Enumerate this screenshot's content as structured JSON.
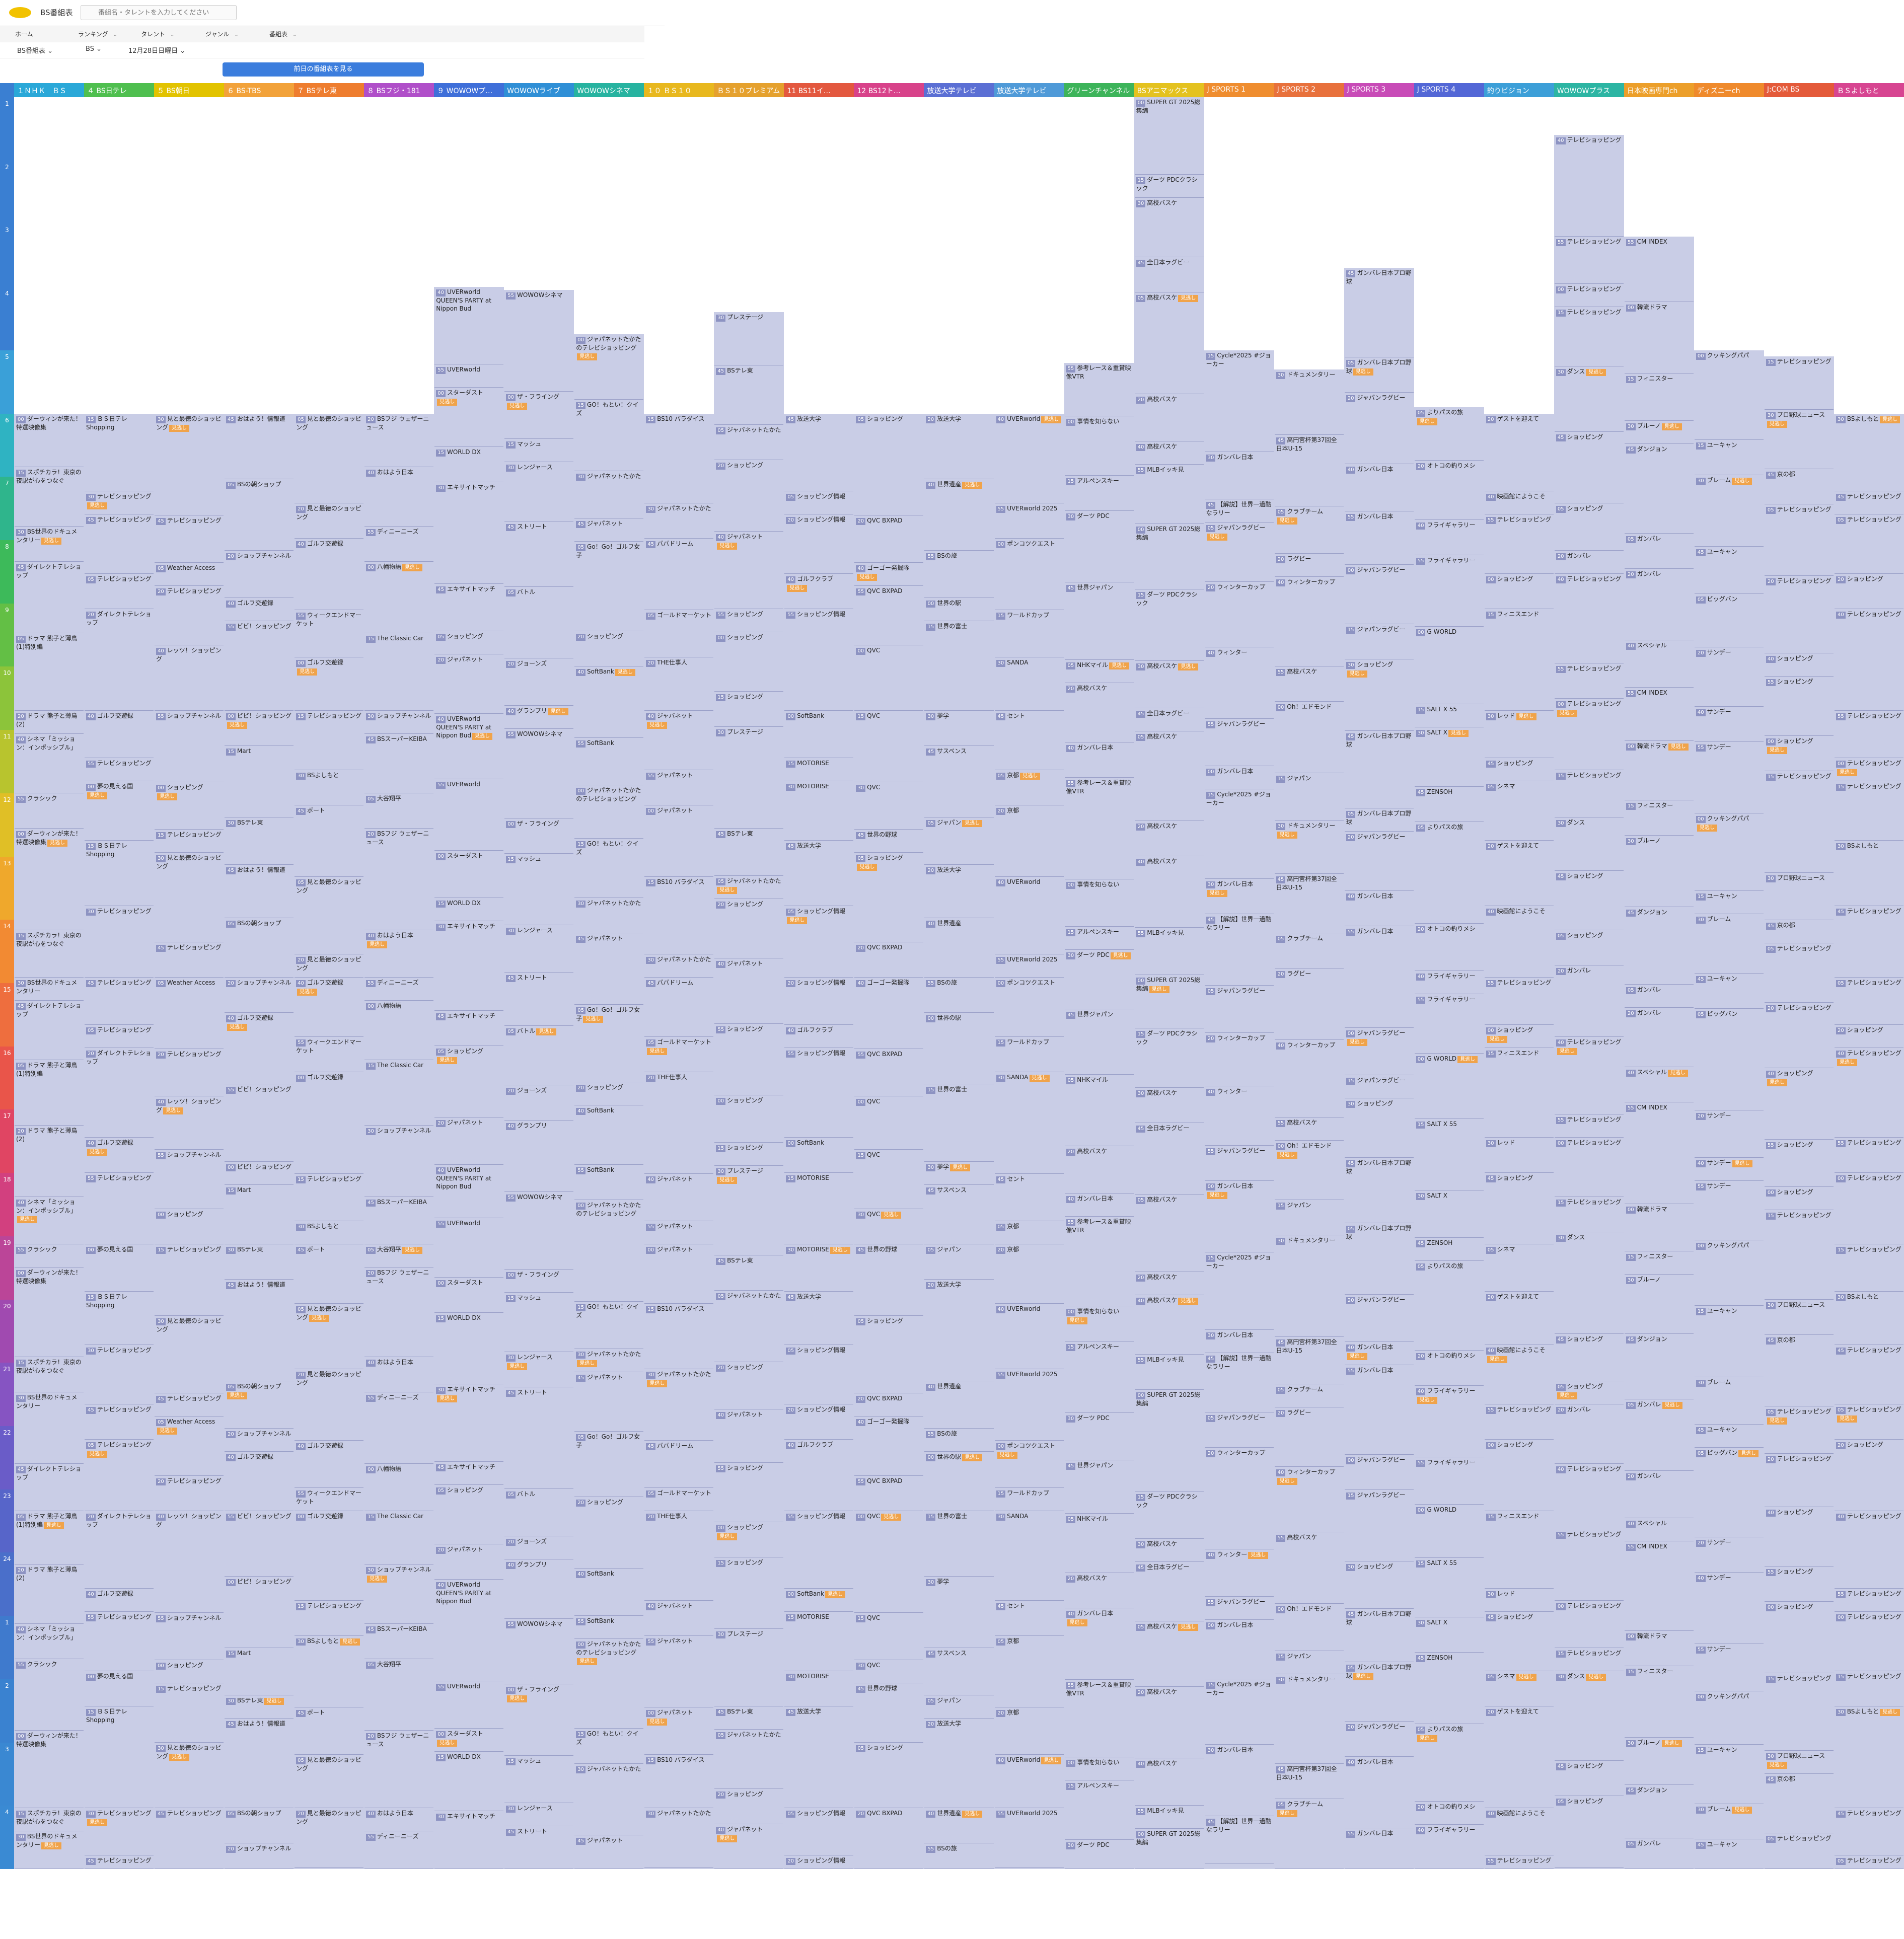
{
  "app": {
    "title": "BS番組表",
    "search_placeholder": "番組名・タレントを入力してください"
  },
  "nav": {
    "items": [
      "ホーム",
      "ランキング",
      "タレント",
      "ジャンル",
      "番組表"
    ]
  },
  "filters": {
    "guide": "BS番組表",
    "band": "BS",
    "date": "12月28日日曜日"
  },
  "prev_button": "前日の番組表を見る",
  "channels": [
    {
      "name": "１ＮＨＫ　ＢＳ",
      "color": "#2aa8d8"
    },
    {
      "name": "４ BS日テレ",
      "color": "#4fbf4f"
    },
    {
      "name": "５ BS朝日",
      "color": "#e2c300"
    },
    {
      "name": "６ BS-TBS",
      "color": "#f2a23a"
    },
    {
      "name": "７ BSテレ東",
      "color": "#ee7d2f"
    },
    {
      "name": "８ BSフジ・181",
      "color": "#b04fc9"
    },
    {
      "name": "９ WOWOWプ…",
      "color": "#3f6fd9"
    },
    {
      "name": "WOWOWライブ",
      "color": "#2f8fd6"
    },
    {
      "name": "WOWOWシネマ",
      "color": "#27b3a0"
    },
    {
      "name": "１０ ＢＳ１０",
      "color": "#e8b81e"
    },
    {
      "name": "ＢＳ１０プレミアム",
      "color": "#e5a12e"
    },
    {
      "name": "11 BS11イ…",
      "color": "#e3583f"
    },
    {
      "name": "12 BS12ト…",
      "color": "#d8428a"
    },
    {
      "name": "放送大学テレビ",
      "color": "#5b6fd4"
    },
    {
      "name": "放送大学テレビ",
      "color": "#4f9ad8"
    },
    {
      "name": "グリーンチャンネル",
      "color": "#3db45a"
    },
    {
      "name": "BSアニマックス",
      "color": "#e4c21f"
    },
    {
      "name": "J SPORTS 1",
      "color": "#ef8d2f"
    },
    {
      "name": "J SPORTS 2",
      "color": "#e8713c"
    },
    {
      "name": "J SPORTS 3",
      "color": "#c84bb7"
    },
    {
      "name": "J SPORTS 4",
      "color": "#5367d6"
    },
    {
      "name": "釣りビジョン",
      "color": "#3c9fd8"
    },
    {
      "name": "WOWOWプラス",
      "color": "#2cb5a3"
    },
    {
      "name": "日本映画専門ch",
      "color": "#ec9f2a"
    },
    {
      "name": "ディズニーch",
      "color": "#ef8a2c"
    },
    {
      "name": "J:COM BS",
      "color": "#e45a3a"
    },
    {
      "name": "ＢＳよしもと",
      "color": "#d74591"
    }
  ],
  "hours": [
    "1",
    "2",
    "3",
    "4",
    "5",
    "6",
    "7",
    "8",
    "9",
    "10",
    "11",
    "12",
    "13",
    "14",
    "15",
    "16",
    "17",
    "18",
    "19",
    "20",
    "21",
    "22",
    "23",
    "24",
    "1",
    "2",
    "3",
    "4"
  ],
  "hour_colors": [
    "#3a7fd2",
    "#3a7fd2",
    "#3a7fd2",
    "#3a7fd2",
    "#3aa0d8",
    "#2fb3c2",
    "#2fb58c",
    "#3dba5a",
    "#63bf45",
    "#8cc43a",
    "#b8c42e",
    "#e0bf26",
    "#efa82c",
    "#f28a33",
    "#ee6e3e",
    "#e9554a",
    "#e04563",
    "#d2407f",
    "#bb4598",
    "#a04ab0",
    "#8654c2",
    "#6a5cc8",
    "#5765c9",
    "#4a6fca",
    "#3f7acd",
    "#3a82d0",
    "#3a88d2",
    "#3a8ad3"
  ],
  "programs": [
    [
      "ダーウィンが来た！特選映像集",
      "ＢＳ日テレ Shopping",
      "見と最徳のショッピング",
      "おはよう！情報道",
      "見と最徳のショッピング",
      "BSフジ ウェザーニュース",
      "UVERworld QUEEN'S PARTY at Nippon Bud",
      "WOWOWシネマ",
      "ジャパネットたかたのテレビショッピング",
      "BS10 パラダイス",
      "プレステージ",
      "放送大学",
      "ショッピング",
      "放送大学",
      "UVERworld",
      "参考レース＆重賞映像VTR",
      "SUPER GT 2025総集編",
      "Cycle*2025 #ジョーカー",
      "ドキュメンタリー",
      "ガンバレ日本プロ野球",
      "よりパスの旅",
      "ゲストを迎えて",
      "テレビショッピング",
      "CM INDEX",
      "クッキングパパ",
      "テレビショッピング",
      "BSよしもと"
    ],
    [
      "スポチカラ！東京の夜駅が心をつなぐ",
      "テレビショッピング",
      "テレビショッピング",
      "BSの朝ショップ",
      "見と最徳のショッピング",
      "おはよう日本",
      "UVERworld",
      "ザ・フライング",
      "GO！もとい！クイズ",
      "ジャパネットたかた",
      "BSテレ東",
      "ショッピング情報",
      "QVC BXPAD",
      "世界遺産",
      "UVERworld 2025",
      "事情を知らない",
      "ダーツ PDCクラシック",
      "ガンバレ日本",
      "高円宮杯第37回全日本U-15",
      "ガンバレ日本プロ野球",
      "オトコの釣りメシ",
      "映画館にようこそ",
      "テレビショッピング",
      "韓流ドラマ",
      "ユーキャン",
      "プロ野球ニュース",
      "テレビショッピング"
    ],
    [
      "BS世界のドキュメンタリー",
      "テレビショッピング",
      "Weather Access",
      "ショップチャンネル",
      "ゴルフ交遊録",
      "ディニーニーズ",
      "スターダスト",
      "マッシュ",
      "ジャパネットたかた",
      "パパドリーム",
      "ジャパネットたかた",
      "ショッピング情報",
      "ゴーゴー発掘隊",
      "BSの旅",
      "ポンコツクエスト",
      "アルペンスキー",
      "高校バスケ",
      "【解説】世界一過酷なラリー",
      "クラブチーム",
      "ジャパンラグビー",
      "フライギャラリー",
      "テレビショッピング",
      "テレビショッピング",
      "フィニスター",
      "ブレーム",
      "京の都",
      "テレビショッピング"
    ],
    [
      "ダイレクトテレショップ",
      "テレビショッピング",
      "テレビショッピング",
      "ゴルフ交遊録",
      "ウィークエンドマーケット",
      "八幡物語",
      "WORLD DX",
      "レンジャース",
      "ジャパネット",
      "ゴールドマーケット",
      "ショッピング",
      "ゴルフクラブ",
      "QVC BXPAD",
      "世界の駅",
      "ワールドカップ",
      "ダーツ PDC",
      "全日本ラグビー",
      "ジャパンラグビー",
      "ラグビー",
      "ガンバレ日本",
      "フライギャラリー",
      "ショッピング",
      "テレビショッピング",
      "ブルーノ",
      "ユーキャン",
      "テレビショッピング",
      "ショッピング"
    ],
    [
      "ドラマ 熊子と薄鳥(1)特別編",
      "ダイレクトテレショップ",
      "レッツ！ショッピング",
      "ビビ！ショッピング",
      "ゴルフ交遊録",
      "The Classic Car",
      "エキサイトマッチ",
      "ストリート",
      "Go！Go！ゴルフ女子",
      "THE仕事人",
      "ジャパネット",
      "ショッピング情報",
      "QVC",
      "世界の富士",
      "SANDA",
      "世界ジャパン",
      "高校バスケ",
      "ウィンターカップ",
      "ウィンターカップ",
      "ガンバレ日本",
      "G WORLD",
      "フィニスエンド",
      "ダンス",
      "ダンジョン",
      "ビッグバン",
      "テレビショッピング",
      "テレビショッピング"
    ],
    [
      "ドラマ 熊子と薄鳥(2)",
      "ゴルフ交遊録",
      "ショップチャンネル",
      "ビビ！ショッピング",
      "テレビショッピング",
      "ショップチャンネル",
      "エキサイトマッチ",
      "バトル",
      "ショッピング",
      "ジャパネット",
      "ショッピング",
      "SoftBank",
      "QVC",
      "夢学",
      "セント",
      "NHKマイル",
      "高校バスケ",
      "ウィンター",
      "高校バスケ",
      "ジャパンラグビー",
      "SALT X 55",
      "レッド",
      "ショッピング",
      "ガンバレ",
      "サンデー",
      "ショッピング",
      "テレビショッピング"
    ],
    [
      "シネマ「ミッション：インポッシブル」",
      "テレビショッピング",
      "ショッピング",
      "Mart",
      "BSよしもと",
      "BSスーパーKEIBA",
      "ショッピング",
      "ジョーンズ",
      "SoftBank",
      "ジャパネット",
      "ショッピング",
      "MOTORISE",
      "QVC",
      "サスペンス",
      "京都",
      "高校バスケ",
      "高校バスケ",
      "ジャパンラグビー",
      "Oh！エドモンド",
      "ジャパンラグビー",
      "SALT X",
      "ショッピング",
      "ショッピング",
      "ガンバレ",
      "サンデー",
      "ショッピング",
      "テレビショッピング"
    ],
    [
      "クラシック",
      "夢の見える国",
      "テレビショッピング",
      "BSテレ東",
      "ボート",
      "大谷翔平",
      "ジャパネット",
      "グランプリ",
      "SoftBank",
      "ジャパネット",
      "ショッピング",
      "MOTORISE",
      "世界の野球",
      "ジャパン",
      "京都",
      "ガンバレ日本",
      "MLBイッキ見",
      "ガンバレ日本",
      "ジャパン",
      "ショッピング",
      "ZENSOH",
      "シネマ",
      "ガンバレ",
      "スペシャル",
      "サンデー",
      "ショッピング",
      "テレビショッピング"
    ]
  ]
}
